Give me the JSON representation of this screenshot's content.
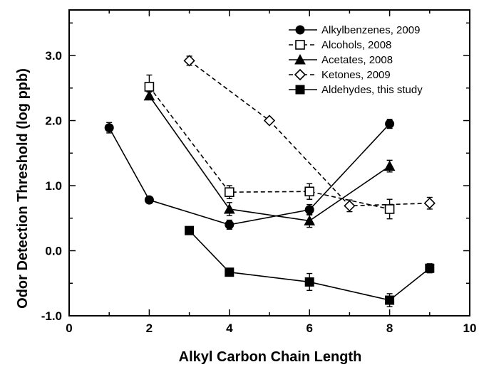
{
  "chart_data": {
    "type": "line",
    "xlabel": "Alkyl Carbon Chain Length",
    "ylabel": "Odor Detection Threshold (log ppb)",
    "xlim": [
      0,
      10
    ],
    "ylim": [
      -1.0,
      3.7
    ],
    "x_ticks": [
      "0",
      "2",
      "4",
      "6",
      "8",
      "10"
    ],
    "y_ticks": [
      "-1.0",
      "0.0",
      "1.0",
      "2.0",
      "3.0"
    ],
    "grid": false,
    "legend_position": "top-right",
    "series": [
      {
        "name": "Alkylbenzenes, 2009",
        "marker": "filled-circle",
        "line": "solid",
        "points": [
          {
            "x": 1,
            "y": 1.89,
            "err": 0.08
          },
          {
            "x": 2,
            "y": 0.78,
            "err": 0.05
          },
          {
            "x": 4,
            "y": 0.4,
            "err": 0.07
          },
          {
            "x": 6,
            "y": 0.63,
            "err": 0.08
          },
          {
            "x": 8,
            "y": 1.95,
            "err": 0.07
          }
        ]
      },
      {
        "name": "Alcohols, 2008",
        "marker": "open-square",
        "line": "dashed",
        "points": [
          {
            "x": 2,
            "y": 2.52,
            "err": 0.18
          },
          {
            "x": 4,
            "y": 0.9,
            "err": 0.1
          },
          {
            "x": 6,
            "y": 0.91,
            "err": 0.12
          },
          {
            "x": 8,
            "y": 0.64,
            "err": 0.15
          }
        ]
      },
      {
        "name": "Acetates, 2008",
        "marker": "filled-triangle",
        "line": "solid",
        "points": [
          {
            "x": 2,
            "y": 2.38,
            "err": 0.06
          },
          {
            "x": 4,
            "y": 0.64,
            "err": 0.1
          },
          {
            "x": 6,
            "y": 0.46,
            "err": 0.1
          },
          {
            "x": 8,
            "y": 1.3,
            "err": 0.09
          }
        ]
      },
      {
        "name": "Ketones, 2009",
        "marker": "open-diamond",
        "line": "dashed",
        "points": [
          {
            "x": 3,
            "y": 2.92,
            "err": 0.07
          },
          {
            "x": 5,
            "y": 2.0,
            "err": 0.0
          },
          {
            "x": 7,
            "y": 0.69,
            "err": 0.09
          },
          {
            "x": 9,
            "y": 0.73,
            "err": 0.09
          }
        ]
      },
      {
        "name": "Aldehydes, this study",
        "marker": "filled-square",
        "line": "solid",
        "points": [
          {
            "x": 3,
            "y": 0.31,
            "err": 0.0
          },
          {
            "x": 4,
            "y": -0.33,
            "err": 0.05
          },
          {
            "x": 6,
            "y": -0.48,
            "err": 0.13
          },
          {
            "x": 8,
            "y": -0.76,
            "err": 0.1
          },
          {
            "x": 9,
            "y": -0.27,
            "err": 0.07
          }
        ]
      }
    ]
  }
}
